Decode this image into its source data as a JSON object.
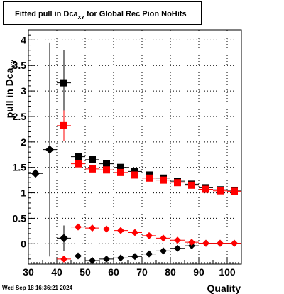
{
  "header": {
    "title_prefix": "Fitted pull in Dca",
    "title_sub": "XY",
    "title_suffix": " for Global Rec Pion NoHits"
  },
  "footer": {
    "timestamp": "Wed Sep 18 16:36:21 2024"
  },
  "chart_data": {
    "type": "scatter",
    "xlabel": "Quality",
    "ylabel": "pull in Dca",
    "ylabel_sub": "XY",
    "xlim": [
      30,
      105
    ],
    "ylim": [
      -0.4,
      4.2
    ],
    "grid": true,
    "x_ticks": [
      30,
      40,
      50,
      60,
      70,
      80,
      90,
      100
    ],
    "y_ticks": [
      0,
      0.5,
      1,
      1.5,
      2,
      2.5,
      3,
      3.5,
      4
    ],
    "series": [
      {
        "marker": "circle",
        "color": "#000000",
        "x": [
          32.5,
          37.5,
          42.5
        ],
        "y": [
          1.38,
          1.85,
          0.11
        ],
        "yerr": [
          0.05,
          2.1,
          0.25
        ]
      },
      {
        "marker": "square",
        "color": "#000000",
        "x": [
          42.5,
          47.5,
          52.5,
          57.5,
          62.5,
          67.5,
          72.5,
          77.5,
          82.5,
          87.5,
          92.5,
          97.5,
          102.5
        ],
        "y": [
          3.16,
          1.71,
          1.65,
          1.57,
          1.5,
          1.42,
          1.35,
          1.29,
          1.23,
          1.17,
          1.1,
          1.06,
          1.05
        ],
        "yerr": [
          0.65,
          0.03,
          0.02,
          0.02,
          0.02,
          0.02,
          0.02,
          0.02,
          0.02,
          0.02,
          0.02,
          0.02,
          0.02
        ]
      },
      {
        "marker": "square",
        "color": "#ff0000",
        "x": [
          42.5,
          47.5,
          52.5,
          57.5,
          62.5,
          67.5,
          72.5,
          77.5,
          82.5,
          87.5,
          92.5,
          97.5,
          102.5
        ],
        "y": [
          2.32,
          1.57,
          1.47,
          1.45,
          1.4,
          1.35,
          1.29,
          1.25,
          1.2,
          1.15,
          1.07,
          1.04,
          1.03
        ],
        "yerr": [
          0.3,
          0.03,
          0.02,
          0.02,
          0.02,
          0.02,
          0.02,
          0.02,
          0.02,
          0.02,
          0.02,
          0.02,
          0.02
        ]
      },
      {
        "marker": "diamond",
        "color": "#000000",
        "x": [
          47.5,
          52.5,
          57.5,
          62.5,
          67.5,
          72.5,
          77.5,
          82.5,
          87.5,
          92.5,
          97.5,
          102.5
        ],
        "y": [
          -0.24,
          -0.33,
          -0.3,
          -0.28,
          -0.25,
          -0.2,
          -0.14,
          -0.09,
          -0.04,
          0.01,
          0.01,
          0.01
        ],
        "yerr": [
          0.02,
          0.02,
          0.02,
          0.02,
          0.02,
          0.02,
          0.02,
          0.02,
          0.02,
          0.01,
          0.01,
          0.01
        ]
      },
      {
        "marker": "diamond",
        "color": "#ff0000",
        "x": [
          42.5,
          47.5,
          52.5,
          57.5,
          62.5,
          67.5,
          72.5,
          77.5,
          82.5,
          87.5,
          92.5,
          97.5,
          102.5
        ],
        "y": [
          -0.3,
          0.33,
          0.31,
          0.29,
          0.26,
          0.22,
          0.16,
          0.11,
          0.07,
          0.03,
          0.01,
          0.01,
          0.01
        ],
        "yerr": [
          0.05,
          0.02,
          0.02,
          0.02,
          0.02,
          0.02,
          0.02,
          0.02,
          0.02,
          0.02,
          0.01,
          0.01,
          0.01
        ]
      }
    ]
  }
}
